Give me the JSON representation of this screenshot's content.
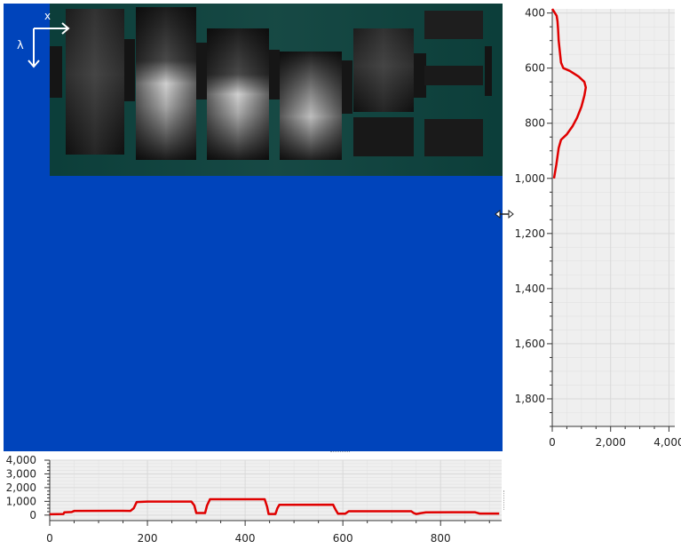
{
  "colors": {
    "background": "#ffffff",
    "image_canvas_bg": "#0044bb",
    "spectrum_bg": "#0b4e48",
    "plot_bg": "#efefef",
    "grid": "#d9d9d9",
    "axis": "#333333",
    "curve": "#e00000",
    "arrow": "#ffffff"
  },
  "image_view": {
    "x_arrow_label": "x",
    "lambda_arrow_label": "λ",
    "splitter_handle_icon": "resize-horizontal-icon"
  },
  "chart_data": [
    {
      "type": "line",
      "orientation": "vertical-profile",
      "series": [
        {
          "points": [
            [
              0,
              385
            ],
            [
              60,
              395
            ],
            [
              150,
              410
            ],
            [
              180,
              430
            ],
            [
              200,
              460
            ],
            [
              220,
              500
            ],
            [
              260,
              540
            ],
            [
              300,
              580
            ],
            [
              380,
              600
            ],
            [
              600,
              610
            ],
            [
              900,
              630
            ],
            [
              1100,
              650
            ],
            [
              1150,
              670
            ],
            [
              1100,
              700
            ],
            [
              1000,
              740
            ],
            [
              850,
              780
            ],
            [
              700,
              810
            ],
            [
              500,
              840
            ],
            [
              300,
              860
            ],
            [
              220,
              890
            ],
            [
              180,
              920
            ],
            [
              140,
              950
            ],
            [
              100,
              975
            ],
            [
              60,
              1000
            ]
          ]
        }
      ],
      "y_ticks": [
        "400",
        "600",
        "800",
        "1,000",
        "1,200",
        "1,400",
        "1,600",
        "1,800"
      ],
      "y_tick_values": [
        400,
        600,
        800,
        1000,
        1200,
        1400,
        1600,
        1800
      ],
      "x_ticks": [
        "0",
        "2,000",
        "4,000"
      ],
      "x_tick_values": [
        0,
        2000,
        4000
      ],
      "xlim": [
        0,
        4200
      ],
      "ylim": [
        385,
        1900
      ],
      "grid": true
    },
    {
      "type": "line",
      "orientation": "horizontal-profile",
      "series": [
        {
          "points": [
            [
              0,
              60
            ],
            [
              15,
              70
            ],
            [
              28,
              80
            ],
            [
              30,
              200
            ],
            [
              45,
              220
            ],
            [
              50,
              300
            ],
            [
              150,
              310
            ],
            [
              165,
              300
            ],
            [
              172,
              500
            ],
            [
              178,
              950
            ],
            [
              200,
              980
            ],
            [
              290,
              980
            ],
            [
              296,
              700
            ],
            [
              300,
              150
            ],
            [
              318,
              150
            ],
            [
              322,
              700
            ],
            [
              328,
              1150
            ],
            [
              440,
              1150
            ],
            [
              445,
              600
            ],
            [
              448,
              80
            ],
            [
              462,
              80
            ],
            [
              466,
              500
            ],
            [
              470,
              750
            ],
            [
              580,
              760
            ],
            [
              585,
              400
            ],
            [
              590,
              100
            ],
            [
              605,
              100
            ],
            [
              612,
              280
            ],
            [
              740,
              280
            ],
            [
              745,
              150
            ],
            [
              750,
              80
            ],
            [
              760,
              140
            ],
            [
              770,
              200
            ],
            [
              870,
              210
            ],
            [
              880,
              110
            ],
            [
              920,
              110
            ]
          ]
        }
      ],
      "x_ticks": [
        "0",
        "200",
        "400",
        "600",
        "800"
      ],
      "x_tick_values": [
        0,
        200,
        400,
        600,
        800
      ],
      "y_ticks": [
        "4,000",
        "3,000",
        "2,000",
        "1,000",
        "0"
      ],
      "y_tick_values": [
        4000,
        3000,
        2000,
        1000,
        0
      ],
      "xlim": [
        0,
        925
      ],
      "ylim": [
        -400,
        4000
      ],
      "grid": true
    }
  ]
}
